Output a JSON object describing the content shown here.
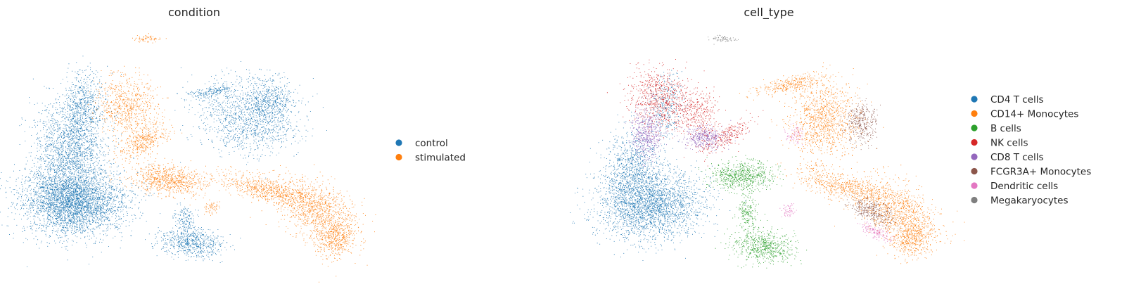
{
  "chart_data": [
    {
      "type": "scatter",
      "title": "condition",
      "xlabel": "",
      "ylabel": "",
      "grid": false,
      "axes_visible": false,
      "legend_placement": "right",
      "series": [
        {
          "name": "control",
          "color": "#1f77b4"
        },
        {
          "name": "stimulated",
          "color": "#ff7f0e"
        }
      ]
    },
    {
      "type": "scatter",
      "title": "cell_type",
      "xlabel": "",
      "ylabel": "",
      "grid": false,
      "axes_visible": false,
      "legend_placement": "right",
      "series": [
        {
          "name": "CD4 T cells",
          "color": "#1f77b4"
        },
        {
          "name": "CD14+ Monocytes",
          "color": "#ff7f0e"
        },
        {
          "name": "B cells",
          "color": "#2ca02c"
        },
        {
          "name": "NK cells",
          "color": "#d62728"
        },
        {
          "name": "CD8 T cells",
          "color": "#9467bd"
        },
        {
          "name": "FCGR3A+ Monocytes",
          "color": "#8c564b"
        },
        {
          "name": "Dendritic cells",
          "color": "#e377c2"
        },
        {
          "name": "Megakaryocytes",
          "color": "#7f7f7f"
        }
      ]
    }
  ]
}
